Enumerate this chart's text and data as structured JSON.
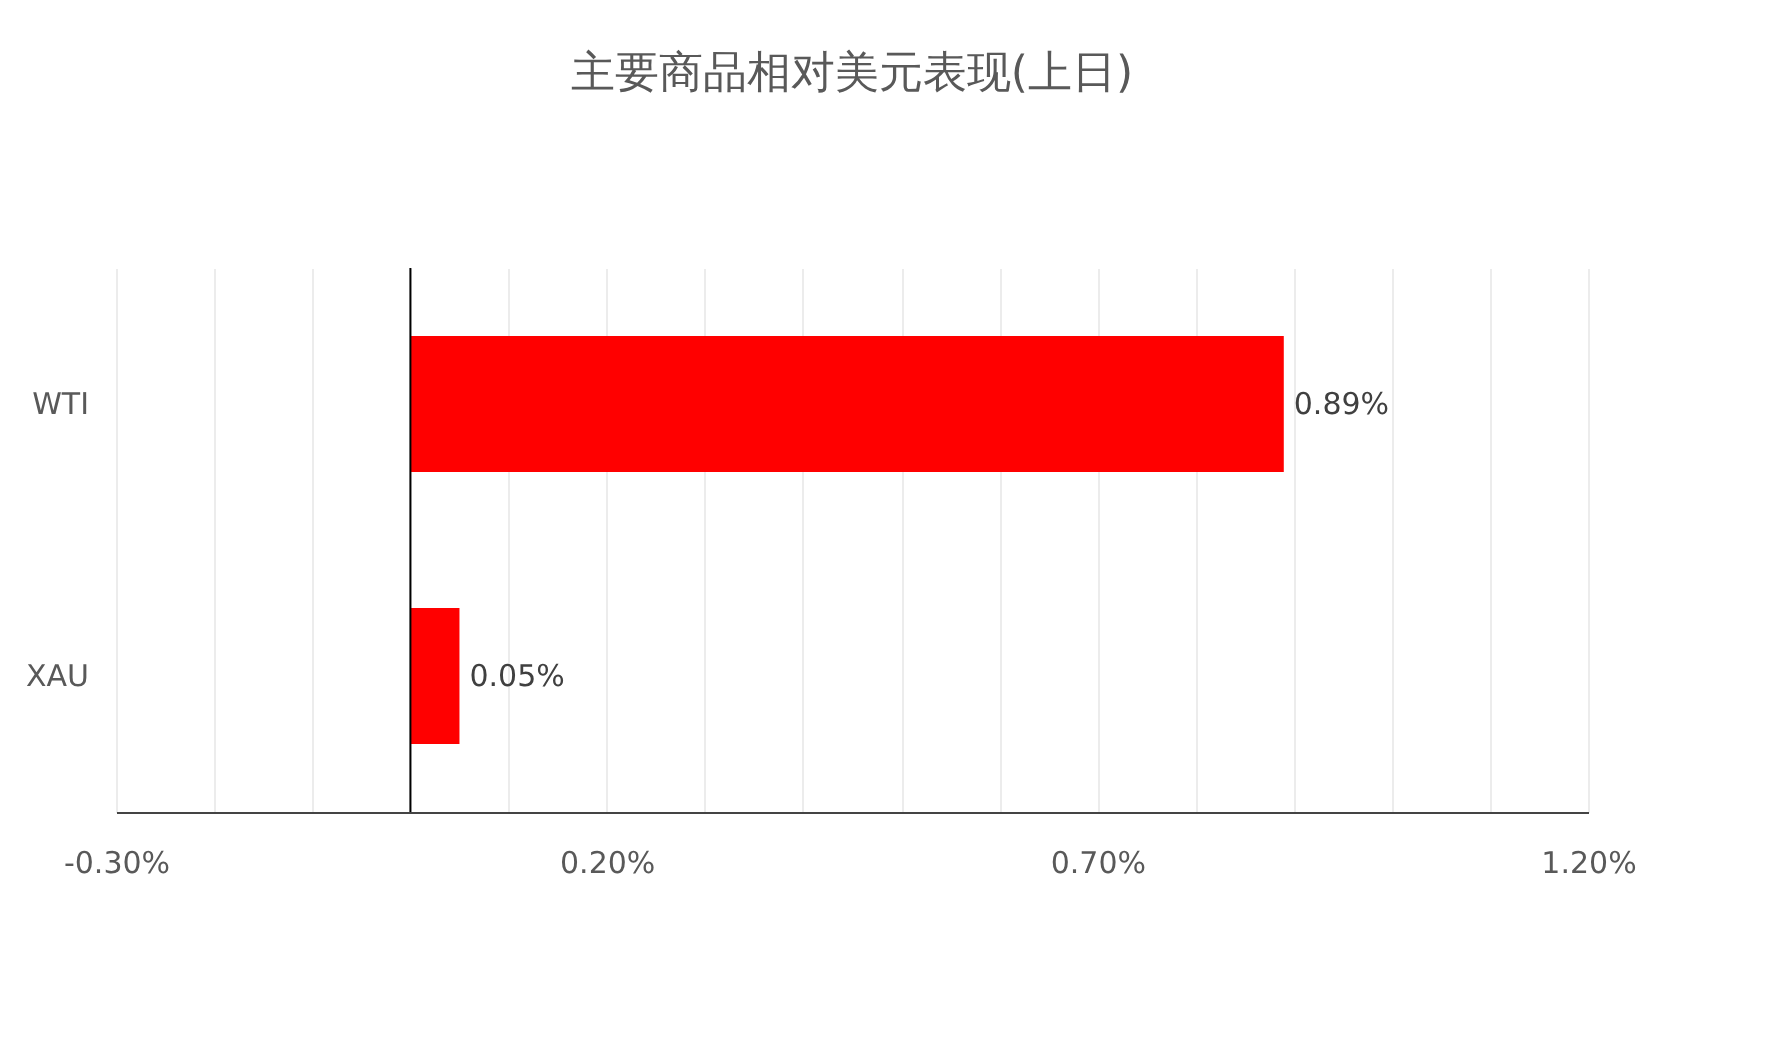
{
  "chart_data": {
    "type": "bar",
    "orientation": "horizontal",
    "title": "主要商品相对美元表现(上日)",
    "categories": [
      "WTI",
      "XAU"
    ],
    "values": [
      0.89,
      0.05
    ],
    "color": "#ff0000",
    "value_labels": [
      "0.89%",
      "0.05%"
    ],
    "xlim": [
      -0.3,
      1.2
    ],
    "xticks": [
      {
        "value": -0.3,
        "label": "-0.30%"
      },
      {
        "value": -0.2,
        "label": null
      },
      {
        "value": -0.1,
        "label": null
      },
      {
        "value": 0,
        "label": null
      },
      {
        "value": 0.1,
        "label": null
      },
      {
        "value": 0.2,
        "label": "0.20%"
      },
      {
        "value": 0.3,
        "label": null
      },
      {
        "value": 0.4,
        "label": null
      },
      {
        "value": 0.5,
        "label": null
      },
      {
        "value": 0.6,
        "label": null
      },
      {
        "value": 0.7,
        "label": "0.70%"
      },
      {
        "value": 0.8,
        "label": null
      },
      {
        "value": 0.9,
        "label": null
      },
      {
        "value": 1.0,
        "label": null
      },
      {
        "value": 1.1,
        "label": null
      },
      {
        "value": 1.2,
        "label": "1.20%"
      }
    ],
    "grid": "x"
  }
}
